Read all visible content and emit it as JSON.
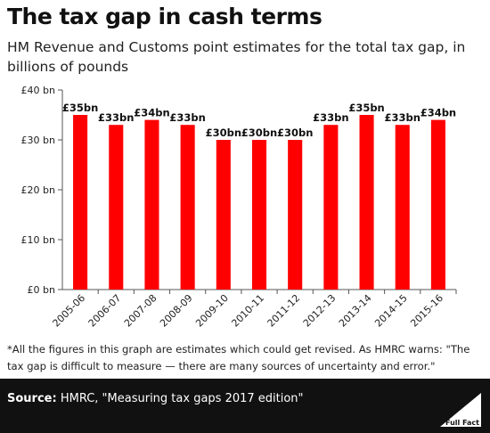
{
  "header": {
    "title": "The tax gap in cash terms",
    "subtitle": "HM Revenue and Customs point estimates for the total tax gap, in billions of pounds"
  },
  "footnote": "*All the figures in this graph are estimates which could get revised. As HMRC warns: \"The tax gap is difficult to measure — there are many sources of uncertainty and error.\"",
  "footer": {
    "source_label": "Source:",
    "source_text": "HMRC, \"Measuring tax gaps 2017 edition\"",
    "logo_text": "Full Fact"
  },
  "colors": {
    "bar": "#ff0000",
    "footer_bg": "#111111"
  },
  "chart_data": {
    "type": "bar",
    "categories": [
      "2005-06",
      "2006-07",
      "2007-08",
      "2008-09",
      "2009-10",
      "2010-11",
      "2011-12",
      "2012-13",
      "2013-14",
      "2014-15",
      "2015-16"
    ],
    "values": [
      35,
      33,
      34,
      33,
      30,
      30,
      30,
      33,
      35,
      33,
      34
    ],
    "data_labels": [
      "£35bn",
      "£33bn",
      "£34bn",
      "£33bn",
      "£30bn",
      "£30bn",
      "£30bn",
      "£33bn",
      "£35bn",
      "£33bn",
      "£34bn"
    ],
    "yticks": [
      0,
      10,
      20,
      30,
      40
    ],
    "ytick_labels": [
      "£0 bn",
      "£10 bn",
      "£20 bn",
      "£30 bn",
      "£40 bn"
    ],
    "ylim": [
      0,
      40
    ],
    "grid": false,
    "title": "",
    "xlabel": "",
    "ylabel": ""
  }
}
